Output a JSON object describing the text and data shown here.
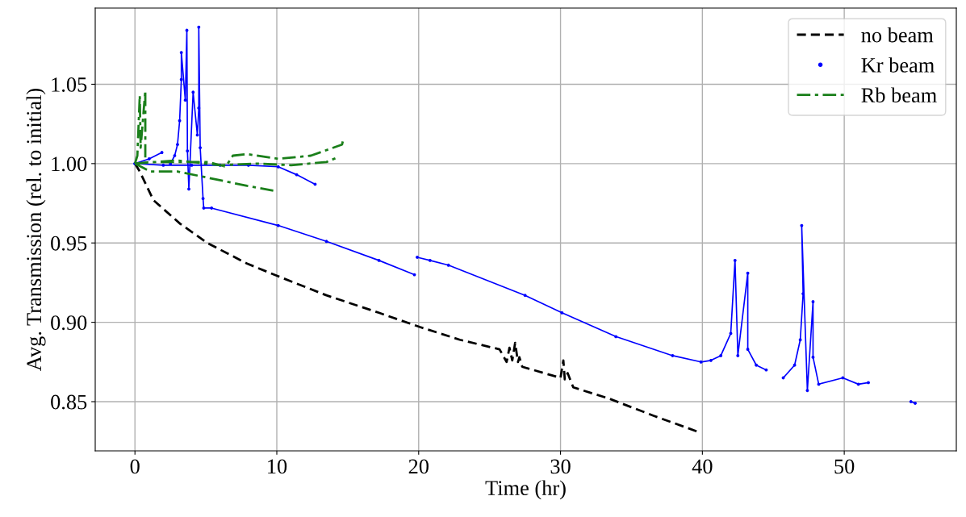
{
  "chart_data": {
    "type": "line",
    "xlabel": "Time (hr)",
    "ylabel": "Avg. Transmission (rel. to initial)",
    "xlim": [
      -2.8,
      57.9
    ],
    "ylim": [
      0.819,
      1.098
    ],
    "xticks": [
      0,
      10,
      20,
      30,
      40,
      50
    ],
    "yticks": [
      {
        "value": 0.85,
        "label": "0.85"
      },
      {
        "value": 0.9,
        "label": "0.90"
      },
      {
        "value": 0.95,
        "label": "0.95"
      },
      {
        "value": 1.0,
        "label": "1.00"
      },
      {
        "value": 1.05,
        "label": "1.05"
      }
    ],
    "grid": true,
    "legend": "top right",
    "series": [
      {
        "name": "no beam",
        "color": "#000000",
        "line_style": "dashed",
        "marker": "none",
        "x": [
          0,
          0.34,
          1.3,
          3.2,
          5.1,
          7.9,
          10.1,
          13.5,
          17.2,
          20.1,
          22.9,
          25.7,
          26.2,
          26.4,
          26.6,
          26.8,
          27.0,
          27.1,
          27.3,
          30.0,
          30.2,
          30.3,
          30.5,
          30.9,
          33.4,
          36.6,
          39.7
        ],
        "values": [
          1.0,
          0.995,
          0.977,
          0.962,
          0.95,
          0.937,
          0.929,
          0.917,
          0.906,
          0.897,
          0.889,
          0.883,
          0.875,
          0.884,
          0.876,
          0.887,
          0.875,
          0.878,
          0.872,
          0.865,
          0.876,
          0.864,
          0.868,
          0.859,
          0.852,
          0.841,
          0.831
        ]
      },
      {
        "name": "Kr beam",
        "color": "#0000ff",
        "line_style": "solid",
        "marker": "circle",
        "x": [
          0,
          2.0,
          4.0,
          6.0,
          8.0,
          10.1,
          11.4,
          12.7,
          null,
          0,
          1.0,
          1.9,
          null,
          2.5,
          2.8,
          3.0,
          3.15,
          3.27,
          3.27,
          3.55,
          3.66,
          3.7,
          3.8,
          4.1,
          4.4,
          4.5,
          4.5,
          4.6,
          4.8,
          4.85,
          5.4,
          10.1,
          13.5,
          17.2,
          19.7,
          null,
          19.9,
          20.8,
          22.1,
          27.5,
          30.1,
          33.9,
          37.9,
          39.9,
          40.6,
          41.3,
          42.0,
          42.3,
          42.5,
          43.2,
          43.2,
          43.8,
          44.5,
          null,
          45.7,
          46.5,
          46.9,
          47.1,
          47.0,
          47.4,
          47.8,
          47.8,
          48.2,
          49.9,
          51.0,
          51.7,
          null,
          54.7,
          55.0
        ],
        "values": [
          1.0,
          0.999,
          0.999,
          0.999,
          0.999,
          0.998,
          0.993,
          0.987,
          null,
          1.0,
          1.003,
          1.007,
          null,
          1.0,
          1.005,
          1.012,
          1.027,
          1.053,
          1.07,
          1.04,
          1.084,
          1.008,
          0.984,
          1.045,
          1.018,
          1.035,
          1.086,
          1.01,
          0.978,
          0.972,
          0.972,
          0.961,
          0.951,
          0.939,
          0.93,
          null,
          0.941,
          0.939,
          0.936,
          0.917,
          0.906,
          0.891,
          0.879,
          0.875,
          0.876,
          0.879,
          0.893,
          0.939,
          0.879,
          0.931,
          0.883,
          0.873,
          0.87,
          null,
          0.865,
          0.873,
          0.889,
          0.918,
          0.961,
          0.857,
          0.913,
          0.878,
          0.861,
          0.865,
          0.861,
          0.862,
          null,
          0.85,
          0.849
        ]
      },
      {
        "name": "Rb beam",
        "color": "#1a7f1a",
        "line_style": "dashdot",
        "marker": "none",
        "x": [
          0,
          0.17,
          0.34,
          0.4,
          0.73,
          0.73,
          null,
          0,
          1.1,
          5.2,
          6.4,
          6.9,
          7.9,
          10.1,
          12.4,
          14.6,
          14.7,
          null,
          0,
          3.0,
          6.0,
          8.6,
          11.0,
          13.5,
          14.3,
          null,
          0,
          1.1,
          3.0,
          5.2,
          7.9,
          9.75
        ],
        "values": [
          1.0,
          1.005,
          1.043,
          1.01,
          1.046,
          1.0,
          null,
          1.0,
          1.001,
          1.001,
          0.998,
          1.005,
          1.006,
          1.003,
          1.005,
          1.012,
          1.016,
          null,
          1.0,
          1.002,
          0.999,
          1.0,
          0.999,
          1.001,
          1.004,
          null,
          1.0,
          0.995,
          0.995,
          0.991,
          0.986,
          0.983
        ]
      }
    ]
  }
}
